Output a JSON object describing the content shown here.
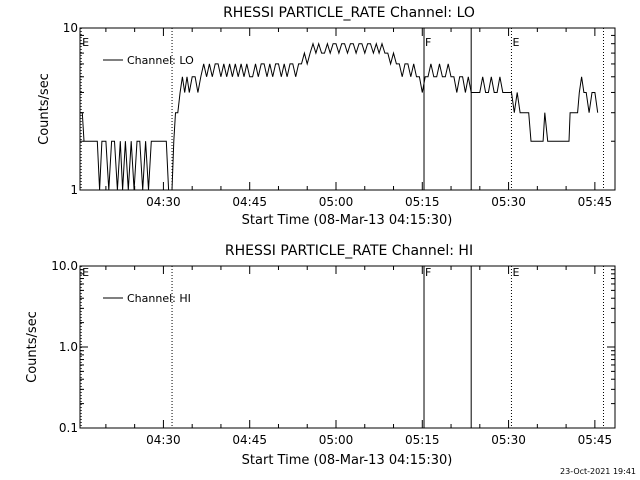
{
  "footer": {
    "timestamp": "23-Oct-2021 19:41"
  },
  "chart_data": [
    {
      "type": "line",
      "title": "RHESSI PARTICLE_RATE Channel: LO",
      "xlabel": "Start Time (08-Mar-13 04:15:30)",
      "ylabel": "Counts/sec",
      "yscale": "log",
      "ylim": [
        1,
        10
      ],
      "xlim_minutes_after_start": [
        0,
        93
      ],
      "y_tick_labels": [
        "1",
        "10"
      ],
      "x_tick_labels": [
        "04:30",
        "04:45",
        "05:00",
        "05:15",
        "05:30",
        "05:45"
      ],
      "x_tick_minutes": [
        14.5,
        29.5,
        44.5,
        59.5,
        74.5,
        89.5
      ],
      "legend": {
        "label": "Channel: LO",
        "placement": "top-left"
      },
      "markers": [
        {
          "minute": 0.2,
          "label": "E",
          "style": "dotted"
        },
        {
          "minute": 16.0,
          "label": "",
          "style": "dotted"
        },
        {
          "minute": 59.8,
          "label": "F",
          "style": "solid"
        },
        {
          "minute": 68.0,
          "label": "",
          "style": "solid"
        },
        {
          "minute": 75.0,
          "label": "E",
          "style": "dotted"
        },
        {
          "minute": 91.0,
          "label": "",
          "style": "dotted"
        }
      ],
      "series": [
        {
          "values_minute_countrate": [
            [
              0,
              3
            ],
            [
              0.4,
              3
            ],
            [
              0.7,
              2
            ],
            [
              1,
              2
            ],
            [
              2.5,
              2
            ],
            [
              3,
              2
            ],
            [
              3.4,
              1
            ],
            [
              3.8,
              2
            ],
            [
              4.5,
              2
            ],
            [
              5,
              1
            ],
            [
              5.5,
              2
            ],
            [
              6,
              2
            ],
            [
              6.5,
              1
            ],
            [
              7,
              2
            ],
            [
              7.4,
              1
            ],
            [
              7.9,
              2
            ],
            [
              8.4,
              1
            ],
            [
              8.9,
              2
            ],
            [
              9.4,
              1
            ],
            [
              9.9,
              2
            ],
            [
              10.4,
              2
            ],
            [
              10.9,
              1
            ],
            [
              11.4,
              2
            ],
            [
              11.9,
              1
            ],
            [
              12.4,
              2
            ],
            [
              13,
              2
            ],
            [
              13.5,
              2
            ],
            [
              14,
              2
            ],
            [
              14.5,
              2
            ],
            [
              15,
              2
            ],
            [
              15.4,
              1
            ],
            [
              16,
              1
            ],
            [
              16.3,
              2
            ],
            [
              16.6,
              3
            ],
            [
              17,
              3
            ],
            [
              17.4,
              4
            ],
            [
              17.8,
              5
            ],
            [
              18.2,
              4
            ],
            [
              18.6,
              5
            ],
            [
              19,
              4
            ],
            [
              19.5,
              5
            ],
            [
              20,
              5
            ],
            [
              20.5,
              4
            ],
            [
              21,
              5
            ],
            [
              21.5,
              6
            ],
            [
              22,
              5
            ],
            [
              22.5,
              6
            ],
            [
              23,
              5
            ],
            [
              23.5,
              6
            ],
            [
              24,
              6
            ],
            [
              24.5,
              5
            ],
            [
              25,
              6
            ],
            [
              25.5,
              5
            ],
            [
              26,
              6
            ],
            [
              26.5,
              5
            ],
            [
              27,
              6
            ],
            [
              27.5,
              5
            ],
            [
              28,
              6
            ],
            [
              28.5,
              5
            ],
            [
              29,
              6
            ],
            [
              29.5,
              5
            ],
            [
              30,
              5
            ],
            [
              30.5,
              6
            ],
            [
              31,
              5
            ],
            [
              31.5,
              6
            ],
            [
              32,
              6
            ],
            [
              32.5,
              5
            ],
            [
              33,
              6
            ],
            [
              33.5,
              5
            ],
            [
              34,
              6
            ],
            [
              34.5,
              6
            ],
            [
              35,
              5
            ],
            [
              35.5,
              6
            ],
            [
              36,
              5
            ],
            [
              36.5,
              6
            ],
            [
              37,
              6
            ],
            [
              37.5,
              5
            ],
            [
              38,
              6
            ],
            [
              38.5,
              6
            ],
            [
              39,
              7
            ],
            [
              39.5,
              6
            ],
            [
              40,
              7
            ],
            [
              40.5,
              8
            ],
            [
              41,
              7
            ],
            [
              41.5,
              8
            ],
            [
              42,
              7
            ],
            [
              42.5,
              7
            ],
            [
              43,
              8
            ],
            [
              43.5,
              7
            ],
            [
              44,
              8
            ],
            [
              44.5,
              8
            ],
            [
              45,
              7
            ],
            [
              45.5,
              8
            ],
            [
              46,
              8
            ],
            [
              46.5,
              7
            ],
            [
              47,
              8
            ],
            [
              47.5,
              8
            ],
            [
              48,
              7
            ],
            [
              48.5,
              8
            ],
            [
              49,
              8
            ],
            [
              49.5,
              7
            ],
            [
              50,
              8
            ],
            [
              50.5,
              8
            ],
            [
              51,
              7
            ],
            [
              51.5,
              8
            ],
            [
              52,
              7
            ],
            [
              52.5,
              8
            ],
            [
              53,
              7
            ],
            [
              53.5,
              7
            ],
            [
              54,
              6
            ],
            [
              54.5,
              7
            ],
            [
              55,
              6
            ],
            [
              55.5,
              6
            ],
            [
              56,
              5
            ],
            [
              56.5,
              6
            ],
            [
              57,
              6
            ],
            [
              57.5,
              5
            ],
            [
              58,
              6
            ],
            [
              58.5,
              5
            ],
            [
              59,
              5
            ],
            [
              59.5,
              4
            ],
            [
              60,
              5
            ],
            [
              60.5,
              5
            ],
            [
              61,
              6
            ],
            [
              61.5,
              5
            ],
            [
              62,
              5
            ],
            [
              62.5,
              6
            ],
            [
              63,
              5
            ],
            [
              63.5,
              5
            ],
            [
              64,
              6
            ],
            [
              64.5,
              5
            ],
            [
              65,
              5
            ],
            [
              65.5,
              4
            ],
            [
              66,
              5
            ],
            [
              66.5,
              5
            ],
            [
              67,
              4
            ],
            [
              67.5,
              5
            ],
            [
              68,
              4
            ],
            [
              68.5,
              4
            ],
            [
              69,
              4
            ],
            [
              69.5,
              4
            ],
            [
              70,
              5
            ],
            [
              70.5,
              4
            ],
            [
              71,
              4
            ],
            [
              71.5,
              5
            ],
            [
              72,
              4
            ],
            [
              72.5,
              4
            ],
            [
              73,
              5
            ],
            [
              73.5,
              4
            ],
            [
              74,
              4
            ],
            [
              74.5,
              4
            ],
            [
              75,
              4
            ],
            [
              75.5,
              3
            ],
            [
              76,
              4
            ],
            [
              76.5,
              3
            ],
            [
              77,
              3
            ],
            [
              77.5,
              3
            ],
            [
              78,
              3
            ],
            [
              78.4,
              2
            ],
            [
              79,
              2
            ],
            [
              80,
              2
            ],
            [
              80.5,
              2
            ],
            [
              80.8,
              3
            ],
            [
              81.3,
              2
            ],
            [
              82,
              2
            ],
            [
              83,
              2
            ],
            [
              84,
              2
            ],
            [
              85,
              2
            ],
            [
              85.2,
              3
            ],
            [
              86,
              3
            ],
            [
              86.5,
              3
            ],
            [
              86.8,
              4
            ],
            [
              87.2,
              5
            ],
            [
              87.6,
              4
            ],
            [
              88,
              4
            ],
            [
              88.5,
              3
            ],
            [
              89,
              4
            ],
            [
              89.5,
              4
            ],
            [
              90,
              3
            ]
          ]
        }
      ]
    },
    {
      "type": "line",
      "title": "RHESSI PARTICLE_RATE Channel: HI",
      "xlabel": "Start Time (08-Mar-13 04:15:30)",
      "ylabel": "Counts/sec",
      "yscale": "log",
      "ylim": [
        0.1,
        10
      ],
      "xlim_minutes_after_start": [
        0,
        93
      ],
      "y_tick_labels": [
        "0.1",
        "1.0",
        "10.0"
      ],
      "x_tick_labels": [
        "04:30",
        "04:45",
        "05:00",
        "05:15",
        "05:30",
        "05:45"
      ],
      "x_tick_minutes": [
        14.5,
        29.5,
        44.5,
        59.5,
        74.5,
        89.5
      ],
      "legend": {
        "label": "Channel: HI",
        "placement": "top-left"
      },
      "markers": [
        {
          "minute": 0.2,
          "label": "E",
          "style": "dotted"
        },
        {
          "minute": 16.0,
          "label": "",
          "style": "dotted"
        },
        {
          "minute": 59.8,
          "label": "F",
          "style": "solid"
        },
        {
          "minute": 68.0,
          "label": "",
          "style": "solid"
        },
        {
          "minute": 75.0,
          "label": "E",
          "style": "dotted"
        },
        {
          "minute": 91.0,
          "label": "",
          "style": "dotted"
        }
      ],
      "series": [
        {
          "values_minute_countrate": []
        }
      ]
    }
  ]
}
